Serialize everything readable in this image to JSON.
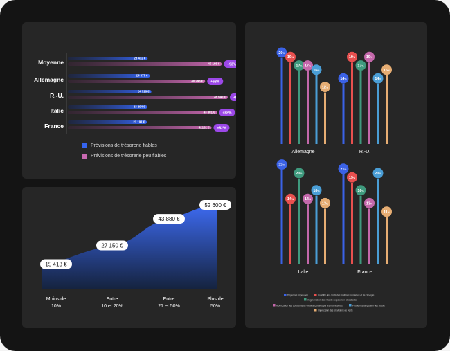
{
  "colors": {
    "reliable": "#3564f0",
    "unreliable": "#c868b0",
    "badge": "#9c48e8",
    "area_top": "#3d6af0",
    "area_bottom": "#15233f"
  },
  "chart_data": [
    {
      "type": "bar",
      "title": "",
      "categories": [
        "Moyenne",
        "Allemagne",
        "R.-U.",
        "Italie",
        "France"
      ],
      "series": [
        {
          "name": "Prévisions de trésorerie fiables",
          "values": [
            23432,
            24077,
            24516,
            23294,
            23191
          ],
          "labels": [
            "23 432 €",
            "24 077 €",
            "24 516 €",
            "23 294 €",
            "23 191 €"
          ]
        },
        {
          "name": "Prévisions de trésorerie peu fiables",
          "values": [
            45166,
            40296,
            46940,
            43801,
            42162
          ],
          "labels": [
            "45 166 €",
            "40 296 €",
            "46 940 €",
            "43 801 €",
            "42162 €"
          ]
        }
      ],
      "badges": [
        "+93%",
        "+68%",
        "+91%",
        "+88%",
        "+82%"
      ],
      "legend": [
        "Prévisions de trésorerie fiables",
        "Prévisions de trésorerie peu fiables"
      ],
      "xlim": [
        0,
        50000
      ]
    },
    {
      "type": "area",
      "title": "",
      "categories": [
        "Moins de 10%",
        "Entre 10 et 20%",
        "Entre 21 et 50%",
        "Plus de 50%"
      ],
      "category_lines": [
        [
          "Moins de",
          "10%"
        ],
        [
          "Entre",
          "10 et 20%"
        ],
        [
          "Entre",
          "21 et 50%"
        ],
        [
          "Plus de",
          "50%"
        ]
      ],
      "values": [
        15413,
        27150,
        43880,
        52600
      ],
      "labels": [
        "15 413 €",
        "27 150 €",
        "43 880 €",
        "52 600 €"
      ],
      "ylim": [
        0,
        60000
      ]
    },
    {
      "type": "bar",
      "title": "",
      "panels": [
        {
          "name": "Allemagne",
          "values": [
            20,
            19,
            17,
            17,
            16,
            12
          ]
        },
        {
          "name": "R.-U.",
          "values": [
            14,
            19,
            17,
            19,
            14,
            16
          ]
        },
        {
          "name": "Italie",
          "values": [
            22,
            14,
            20,
            14,
            16,
            13
          ]
        },
        {
          "name": "France",
          "values": [
            21,
            19,
            16,
            13,
            20,
            11
          ]
        }
      ],
      "series_names": [
        "Dépenses imprévues",
        "Volatilité des coûts des matières premières et de l'énergie",
        "Augmentation des retards de paiement des clients",
        "Modification des conditions de crédit accordées par les fournisseurs",
        "Problèmes de gestion des stocks",
        "Imprécision des prévisions de vente"
      ],
      "series_colors": [
        "#3b62e6",
        "#e8504f",
        "#3f9a7e",
        "#c468ab",
        "#4a9ed6",
        "#e6ad73"
      ],
      "unit": "%",
      "ylim": [
        0,
        24
      ]
    }
  ]
}
